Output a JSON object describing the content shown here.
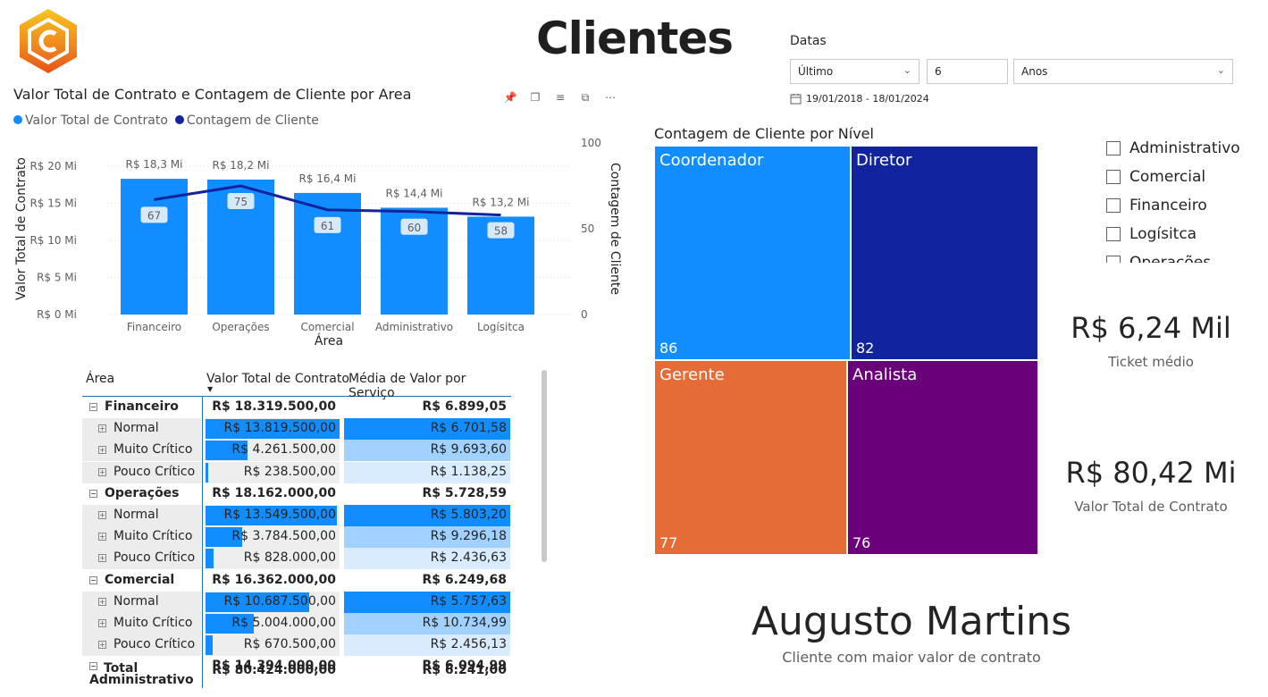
{
  "page": {
    "title": "Clientes"
  },
  "logo": {
    "icon": "hexagon-c-logo",
    "colors": [
      "#f7c520",
      "#f08a1c",
      "#e5531a"
    ]
  },
  "slicer": {
    "title": "Datas",
    "mode": "Último",
    "count": "6",
    "unit": "Anos",
    "range": "19/01/2018 - 18/01/2024"
  },
  "combo_chart": {
    "title": "Valor Total de Contrato e Contagem de Cliente por Area",
    "legend": [
      "Valor Total de Contrato",
      "Contagem de Cliente"
    ]
  },
  "matrix": {
    "headers": [
      "Área",
      "Valor Total de Contrato",
      "Média de Valor por Serviço"
    ],
    "rows": [
      {
        "type": "group",
        "label": "Financeiro",
        "v1": "R$ 18.319.500,00",
        "v2": "R$ 6.899,05"
      },
      {
        "type": "sub",
        "label": "Normal",
        "v1": "R$ 13.819.500,00",
        "v2": "R$ 6.701,58",
        "f1": 1.0,
        "f2": 1.0
      },
      {
        "type": "sub",
        "label": "Muito Crítico",
        "v1": "R$ 4.261.500,00",
        "v2": "R$ 9.693,60",
        "f1": 0.31,
        "f2": 0.6
      },
      {
        "type": "sub",
        "label": "Pouco Crítico",
        "v1": "R$ 238.500,00",
        "v2": "R$ 1.138,25",
        "f1": 0.02,
        "f2": 0.15
      },
      {
        "type": "group",
        "label": "Operações",
        "v1": "R$ 18.162.000,00",
        "v2": "R$ 5.728,59"
      },
      {
        "type": "sub",
        "label": "Normal",
        "v1": "R$ 13.549.500,00",
        "v2": "R$ 5.803,20",
        "f1": 0.98,
        "f2": 1.0
      },
      {
        "type": "sub",
        "label": "Muito Crítico",
        "v1": "R$ 3.784.500,00",
        "v2": "R$ 9.296,18",
        "f1": 0.27,
        "f2": 0.6
      },
      {
        "type": "sub",
        "label": "Pouco Crítico",
        "v1": "R$ 828.000,00",
        "v2": "R$ 2.436,63",
        "f1": 0.06,
        "f2": 0.2
      },
      {
        "type": "group",
        "label": "Comercial",
        "v1": "R$ 16.362.000,00",
        "v2": "R$ 6.249,68"
      },
      {
        "type": "sub",
        "label": "Normal",
        "v1": "R$ 10.687.500,00",
        "v2": "R$ 5.757,63",
        "f1": 0.77,
        "f2": 1.0
      },
      {
        "type": "sub",
        "label": "Muito Crítico",
        "v1": "R$ 5.004.000,00",
        "v2": "R$ 10.734,99",
        "f1": 0.36,
        "f2": 0.7
      },
      {
        "type": "sub",
        "label": "Pouco Crítico",
        "v1": "R$ 670.500,00",
        "v2": "R$ 2.456,13",
        "f1": 0.05,
        "f2": 0.2
      },
      {
        "type": "group",
        "label": "Administrativo",
        "v1": "R$ 14.394.000,00",
        "v2": "R$ 6.094,99"
      }
    ],
    "total": {
      "label": "Total",
      "v1": "R$ 80.424.000,00",
      "v2": "R$ 6.241,00"
    }
  },
  "treemap": {
    "title": "Contagem de Cliente por Nível",
    "tiles": [
      {
        "name": "Coordenador",
        "value": "86",
        "color": "#118dff"
      },
      {
        "name": "Diretor",
        "value": "82",
        "color": "#12239e"
      },
      {
        "name": "Gerente",
        "value": "77",
        "color": "#e66c37"
      },
      {
        "name": "Analista",
        "value": "76",
        "color": "#6b007b"
      }
    ]
  },
  "area_filter": {
    "items": [
      "Administrativo",
      "Comercial",
      "Financeiro",
      "Logísitca",
      "Operações"
    ]
  },
  "cards": {
    "ticket": {
      "value": "R$ 6,24 Mil",
      "label": "Ticket médio"
    },
    "total": {
      "value": "R$ 80,42 Mi",
      "label": "Valor Total de Contrato"
    },
    "top_client": {
      "value": "Augusto Martins",
      "label": "Cliente com maior valor de contrato"
    }
  },
  "chart_data": {
    "type": "bar",
    "title": "Valor Total de Contrato e Contagem de Cliente por Area",
    "categories": [
      "Financeiro",
      "Operações",
      "Comercial",
      "Administrativo",
      "Logísitca"
    ],
    "xlabel": "Área",
    "ylabel": "Valor Total de Contrato",
    "y2label": "Contagem de Cliente",
    "ylim": [
      0,
      23
    ],
    "y2lim": [
      0,
      100
    ],
    "yticks": [
      "R$ 0 Mi",
      "R$ 5 Mi",
      "R$ 10 Mi",
      "R$ 15 Mi",
      "R$ 20 Mi"
    ],
    "y2ticks": [
      "0",
      "50",
      "100"
    ],
    "series": [
      {
        "name": "Valor Total de Contrato",
        "type": "bar",
        "color": "#118dff",
        "values": [
          18.3,
          18.2,
          16.4,
          14.4,
          13.2
        ],
        "labels": [
          "R$ 18,3 Mi",
          "R$ 18,2 Mi",
          "R$ 16,4 Mi",
          "R$ 14,4 Mi",
          "R$ 13,2 Mi"
        ]
      },
      {
        "name": "Contagem de Cliente",
        "type": "line",
        "color": "#12239e",
        "values": [
          67,
          75,
          61,
          60,
          58
        ],
        "labels": [
          "67",
          "75",
          "61",
          "60",
          "58"
        ]
      }
    ],
    "grid": true,
    "legend": "top-left"
  }
}
